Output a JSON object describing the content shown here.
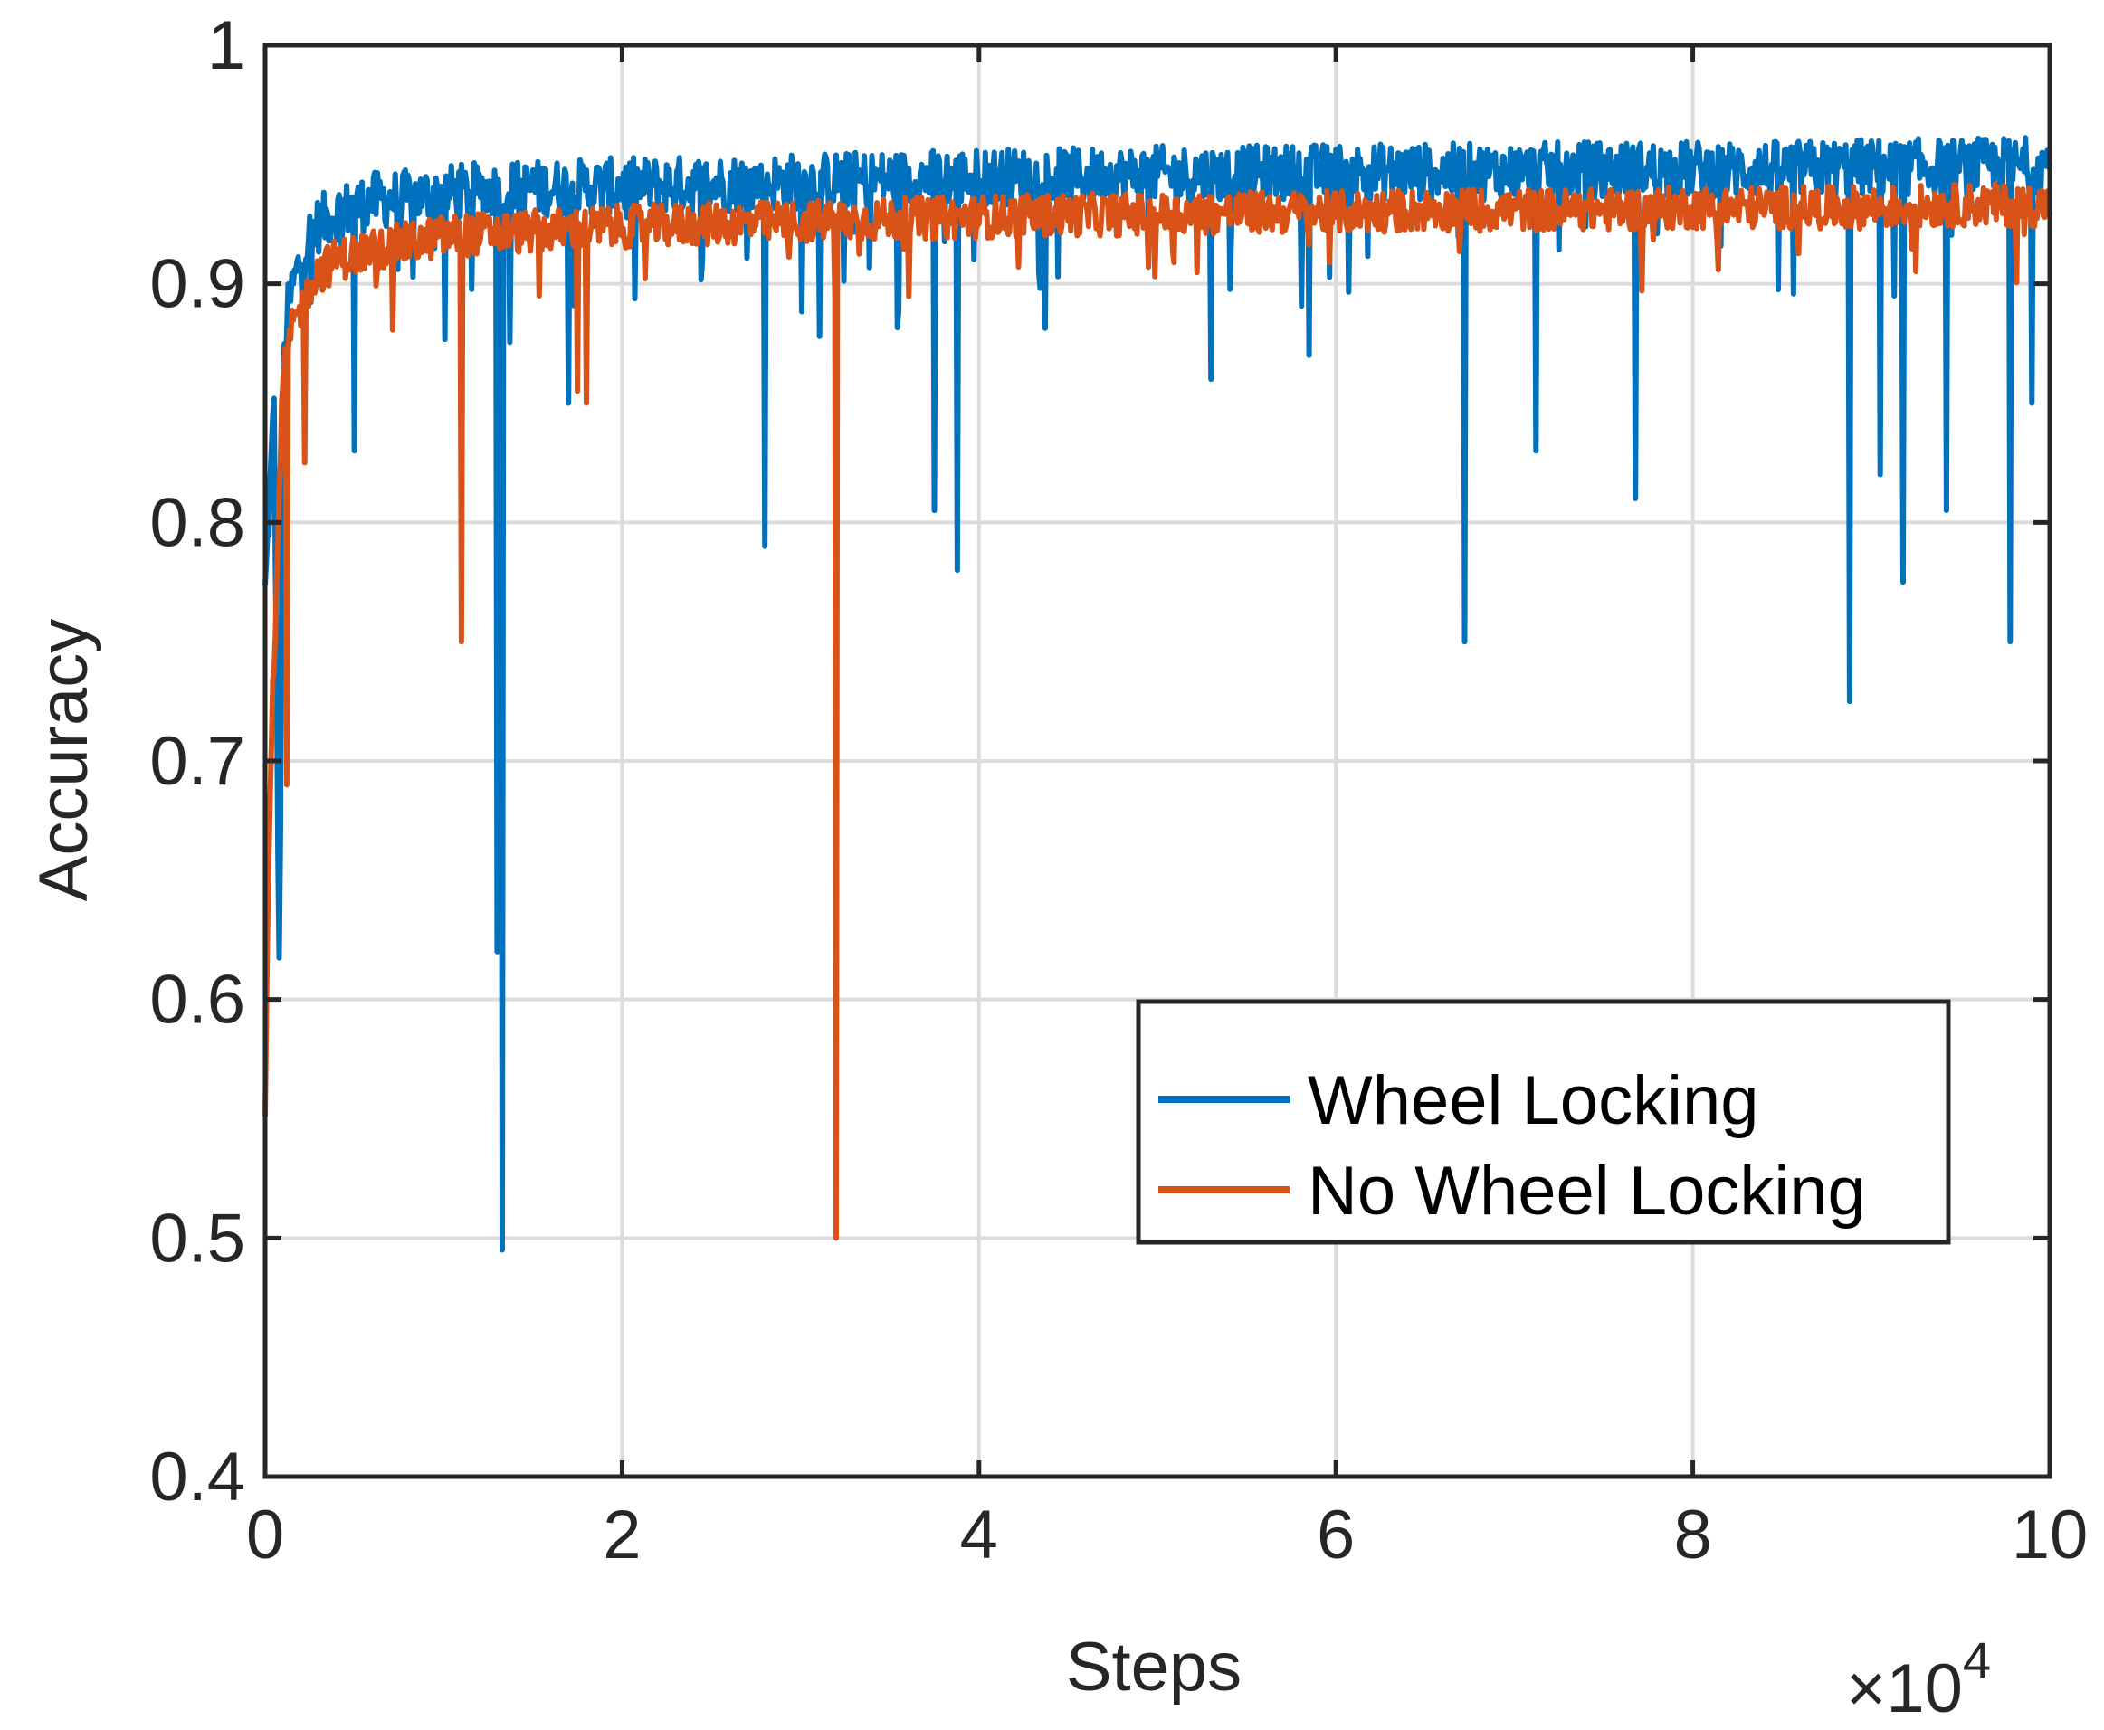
{
  "chart_data": {
    "type": "line",
    "title": "",
    "xlabel": "Steps",
    "ylabel": "Accuracy",
    "x_exponent_label": {
      "base": "×10",
      "power": "4"
    },
    "xlim": [
      0,
      10
    ],
    "ylim": [
      0.4,
      1
    ],
    "x_ticks": [
      0,
      2,
      4,
      6,
      8,
      10
    ],
    "x_tick_labels": [
      "0",
      "2",
      "4",
      "6",
      "8",
      "10"
    ],
    "y_ticks": [
      0.4,
      0.5,
      0.6,
      0.7,
      0.8,
      0.9,
      1
    ],
    "y_tick_labels": [
      "0.4",
      "0.5",
      "0.6",
      "0.7",
      "0.8",
      "0.9",
      "1"
    ],
    "grid": true,
    "legend_position": "lower-right",
    "series": [
      {
        "name": "Wheel Locking",
        "color": "#0072BD",
        "x": [
          0,
          0.02,
          0.05,
          0.08,
          0.1,
          0.13,
          0.16,
          0.2,
          0.25,
          0.3,
          0.4,
          0.5,
          0.6,
          0.8,
          1.0,
          1.2,
          1.5,
          2.0,
          2.5,
          3.0,
          3.5,
          4.0,
          4.5,
          5.0,
          5.5,
          6.0,
          6.5,
          7.0,
          7.5,
          8.0,
          8.5,
          9.0,
          9.5,
          10.0
        ],
        "values": [
          0.77,
          0.8,
          0.85,
          0.6,
          0.86,
          0.89,
          0.9,
          0.91,
          0.92,
          0.925,
          0.93,
          0.932,
          0.935,
          0.936,
          0.938,
          0.939,
          0.94,
          0.941,
          0.942,
          0.943,
          0.944,
          0.945,
          0.945,
          0.946,
          0.946,
          0.947,
          0.947,
          0.947,
          0.948,
          0.948,
          0.948,
          0.949,
          0.949,
          0.95
        ],
        "dips": [
          {
            "x": 0.5,
            "y": 0.83
          },
          {
            "x": 1.3,
            "y": 0.62
          },
          {
            "x": 1.33,
            "y": 0.495
          },
          {
            "x": 1.7,
            "y": 0.85
          },
          {
            "x": 2.8,
            "y": 0.79
          },
          {
            "x": 3.75,
            "y": 0.805
          },
          {
            "x": 3.88,
            "y": 0.78
          },
          {
            "x": 5.3,
            "y": 0.86
          },
          {
            "x": 5.85,
            "y": 0.87
          },
          {
            "x": 6.72,
            "y": 0.75
          },
          {
            "x": 7.12,
            "y": 0.83
          },
          {
            "x": 7.68,
            "y": 0.81
          },
          {
            "x": 8.88,
            "y": 0.725
          },
          {
            "x": 9.05,
            "y": 0.82
          },
          {
            "x": 9.18,
            "y": 0.775
          },
          {
            "x": 9.42,
            "y": 0.805
          },
          {
            "x": 9.78,
            "y": 0.75
          },
          {
            "x": 9.9,
            "y": 0.85
          }
        ]
      },
      {
        "name": "No Wheel Locking",
        "color": "#D95319",
        "x": [
          0,
          0.03,
          0.06,
          0.1,
          0.15,
          0.2,
          0.25,
          0.3,
          0.4,
          0.5,
          0.6,
          0.8,
          1.0,
          1.2,
          1.5,
          2.0,
          2.5,
          3.0,
          3.5,
          4.0,
          4.5,
          5.0,
          5.5,
          6.0,
          6.5,
          7.0,
          7.5,
          8.0,
          8.5,
          9.0,
          9.5,
          10.0
        ],
        "values": [
          0.56,
          0.7,
          0.76,
          0.86,
          0.88,
          0.89,
          0.9,
          0.905,
          0.91,
          0.912,
          0.914,
          0.917,
          0.92,
          0.921,
          0.922,
          0.924,
          0.925,
          0.926,
          0.927,
          0.928,
          0.929,
          0.929,
          0.93,
          0.93,
          0.931,
          0.931,
          0.931,
          0.932,
          0.932,
          0.932,
          0.933,
          0.933
        ],
        "dips": [
          {
            "x": 0.12,
            "y": 0.69
          },
          {
            "x": 0.22,
            "y": 0.825
          },
          {
            "x": 1.1,
            "y": 0.75
          },
          {
            "x": 1.75,
            "y": 0.855
          },
          {
            "x": 1.8,
            "y": 0.85
          },
          {
            "x": 3.2,
            "y": 0.5
          }
        ]
      }
    ]
  }
}
